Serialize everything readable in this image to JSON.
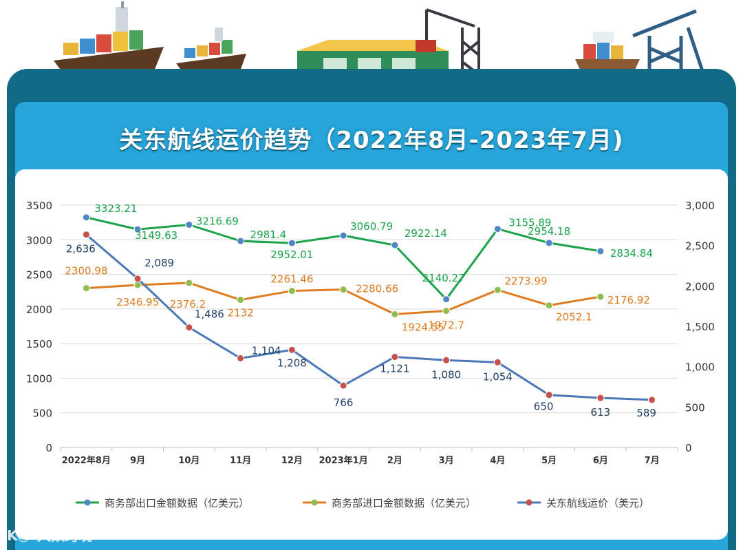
{
  "title": "关东航线运价趋势（2022年8月-2023年7月)",
  "watermark": {
    "logo": "K◎",
    "text": "大数跨境"
  },
  "colors": {
    "export": "#1aa34a",
    "import": "#e07b1f",
    "freight": "#4a78b8",
    "export_marker": "#4f86c6",
    "import_marker": "#8fbc4f",
    "freight_marker": "#c8504b",
    "panel": "#27a6dc",
    "frame": "#126a86"
  },
  "chart_data": {
    "type": "line",
    "title": "关东航线运价趋势（2022年8月-2023年7月)",
    "categories": [
      "2022年8月",
      "9月",
      "10月",
      "11月",
      "12月",
      "2023年1月",
      "2月",
      "3月",
      "4月",
      "5月",
      "6月",
      "7月"
    ],
    "y_left": {
      "range": [
        0,
        3500
      ],
      "ticks": [
        "0",
        "500",
        "1000",
        "1500",
        "2000",
        "2500",
        "3000",
        "3500"
      ]
    },
    "y_right": {
      "range": [
        0,
        3000
      ],
      "ticks": [
        "0",
        "500",
        "1,000",
        "1,500",
        "2,000",
        "2,500",
        "3,000"
      ]
    },
    "grid": true,
    "legend_position": "bottom",
    "series": [
      {
        "name": "商务部出口金额数据（亿美元）",
        "axis": "left",
        "values": [
          3323.21,
          3149.63,
          3216.69,
          2981.4,
          2952.01,
          3060.79,
          2922.14,
          2140.27,
          3155.89,
          2954.18,
          2834.84,
          null
        ],
        "labels": [
          "3323.21",
          "3149.63",
          "3216.69",
          "2981.4",
          "2952.01",
          "3060.79",
          "2922.14",
          "2140.27",
          "3155.89",
          "2954.18",
          "2834.84",
          null
        ]
      },
      {
        "name": "商务部进口金额数据（亿美元）",
        "axis": "left",
        "values": [
          2300.98,
          2346.95,
          2376.2,
          2132,
          2261.46,
          2280.66,
          1924.55,
          1972.7,
          2273.99,
          2052.1,
          2176.92,
          null
        ],
        "labels": [
          "2300.98",
          "2346.95",
          "2376.2",
          "2132",
          "2261.46",
          "2280.66",
          "1924.55",
          "1972.7",
          "2273.99",
          "2052.1",
          "2176.92",
          null
        ]
      },
      {
        "name": "关东航线运价（美元）",
        "axis": "right",
        "values": [
          2636,
          2089,
          1486,
          1104,
          1208,
          766,
          1121,
          1080,
          1054,
          650,
          613,
          589
        ],
        "labels": [
          "2,636",
          "2,089",
          "1,486",
          "1,104",
          "1,208",
          "766",
          "1,121",
          "1,080",
          "1,054",
          "650",
          "613",
          "589"
        ]
      }
    ]
  }
}
